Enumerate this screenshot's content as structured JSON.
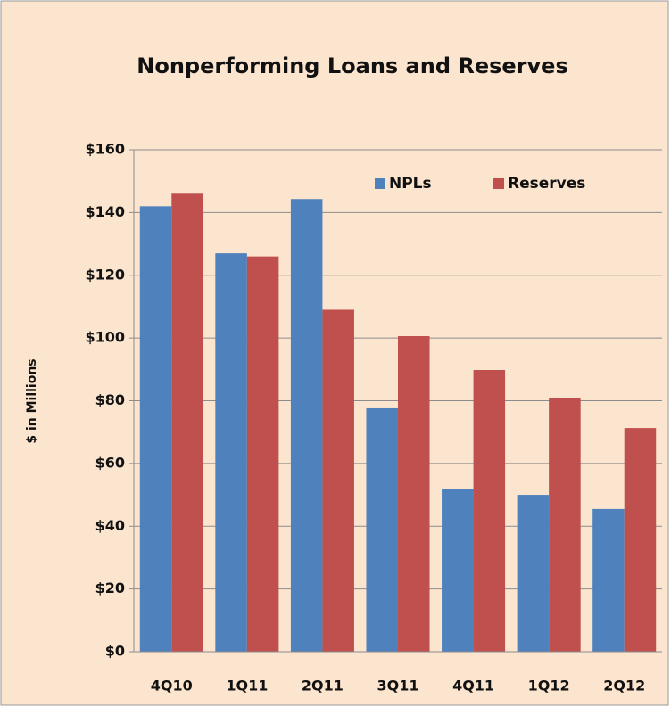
{
  "chart_data": {
    "type": "bar",
    "title": "Nonperforming Loans and Reserves",
    "y_label": "$ in Millions",
    "categories": [
      "4Q10",
      "1Q11",
      "2Q11",
      "3Q11",
      "4Q11",
      "1Q12",
      "2Q12"
    ],
    "series": [
      {
        "name": "NPLs",
        "color": "#4f81bd",
        "values": [
          142,
          127,
          144.3,
          77.6,
          52,
          50,
          45.5
        ]
      },
      {
        "name": "Reserves",
        "color": "#c0504d",
        "values": [
          146,
          126,
          109,
          100.6,
          89.8,
          81,
          71.3
        ]
      }
    ],
    "ylim": [
      0,
      160
    ],
    "yticks": [
      {
        "value": 0,
        "label": "$0"
      },
      {
        "value": 20,
        "label": "$20"
      },
      {
        "value": 40,
        "label": "$40"
      },
      {
        "value": 60,
        "label": "$60"
      },
      {
        "value": 80,
        "label": "$80"
      },
      {
        "value": 100,
        "label": "$100"
      },
      {
        "value": 120,
        "label": "$120"
      },
      {
        "value": 140,
        "label": "$140"
      },
      {
        "value": 160,
        "label": "$160"
      }
    ],
    "grid": true,
    "legend": "top-right"
  }
}
